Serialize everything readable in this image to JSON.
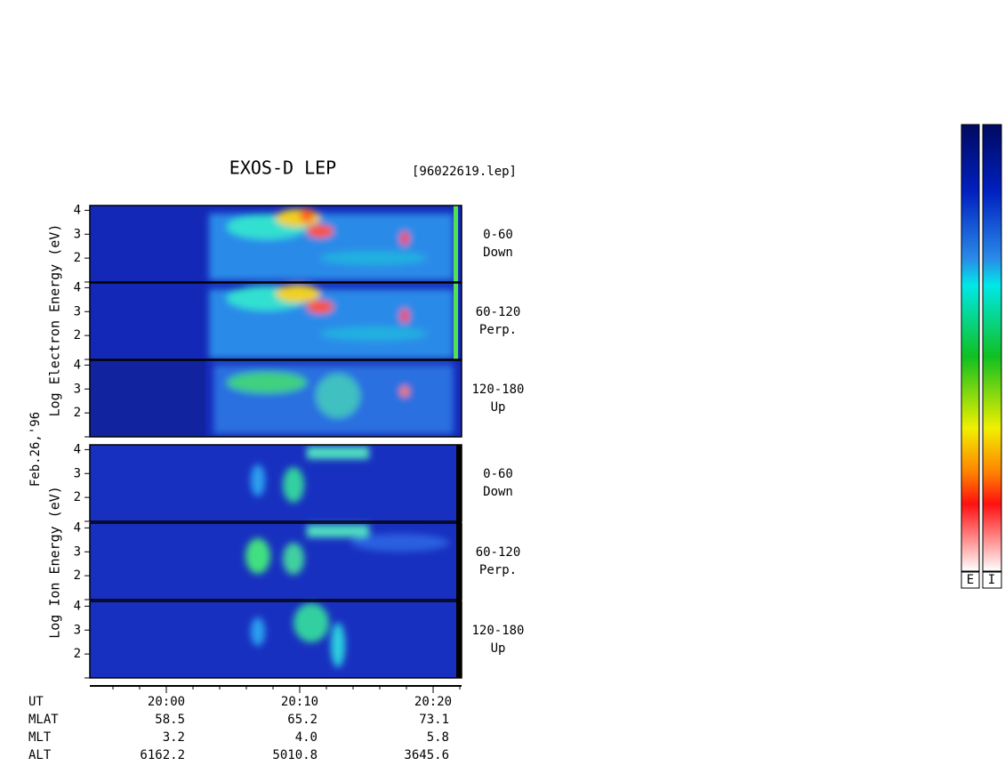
{
  "title": "EXOS-D LEP",
  "file": "[96022619.lep]",
  "date": "Feb.26,'96",
  "electron_axis_label": "Log  Electron  Energy (eV)",
  "ion_axis_label": "Log  Ion  Energy (eV)",
  "ylim": [
    1,
    4.2
  ],
  "yticks": [
    2,
    3,
    4
  ],
  "panels": [
    {
      "range": "0-60",
      "direction": "Down"
    },
    {
      "range": "60-120",
      "direction": "Perp."
    },
    {
      "range": "120-180",
      "direction": "Up"
    },
    {
      "range": "0-60",
      "direction": "Down"
    },
    {
      "range": "60-120",
      "direction": "Perp."
    },
    {
      "range": "120-180",
      "direction": "Up"
    }
  ],
  "time_labels": [
    "20:00",
    "20:10",
    "20:20"
  ],
  "orbit_rows": [
    [
      "UT",
      "",
      "",
      ""
    ],
    [
      "MLAT",
      "58.5",
      "65.2",
      "73.1"
    ],
    [
      "MLT",
      "3.2",
      "4.0",
      "5.8"
    ],
    [
      "ALT",
      "6162.2",
      "5010.8",
      "3645.6"
    ]
  ],
  "colorbars": [
    "E",
    "I"
  ]
}
